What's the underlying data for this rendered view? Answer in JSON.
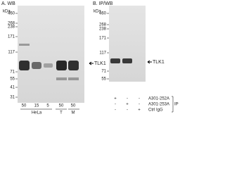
{
  "panel_a": {
    "label": "A. WB",
    "unit": "kDa",
    "markers": [
      "460",
      "268",
      "238",
      "171",
      "117",
      "71",
      "55",
      "41",
      "31"
    ],
    "lanes": [
      "50",
      "15",
      "5",
      "50",
      "50"
    ],
    "groups": [
      "HeLa",
      "T",
      "M"
    ],
    "target": "TLK1"
  },
  "panel_b": {
    "label": "B. IP/WB",
    "unit": "kDa",
    "markers": [
      "460",
      "268",
      "238",
      "171",
      "117",
      "71",
      "55"
    ],
    "target": "TLK1",
    "rows": [
      {
        "name": "A301-252A",
        "marks": [
          "+",
          "-",
          "-"
        ]
      },
      {
        "name": "A301-253A",
        "marks": [
          "-",
          "+",
          "-"
        ]
      },
      {
        "name": "Ctrl IgG",
        "marks": [
          "-",
          "-",
          "+"
        ]
      }
    ],
    "ip": "IP"
  }
}
